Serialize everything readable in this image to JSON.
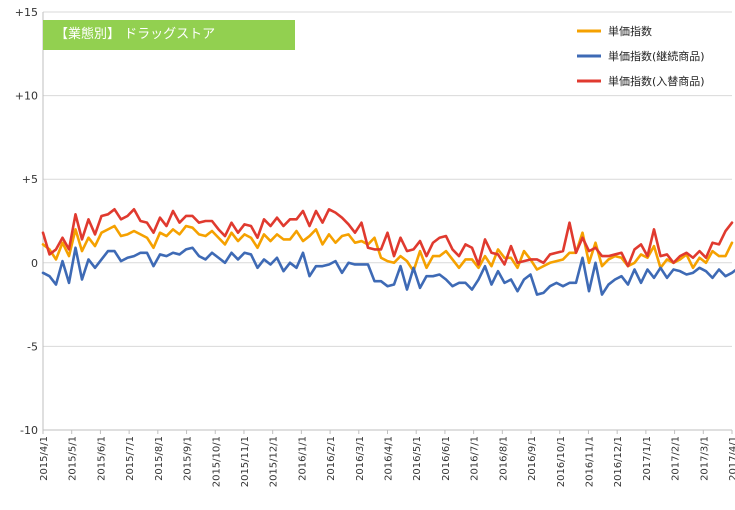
{
  "title": "【業態別】 ドラッグストア",
  "colors": {
    "series1": "#f5a100",
    "series2": "#3e6ab5",
    "series3": "#e03a2f",
    "grid": "#d9d9d9",
    "title_bg": "#92d050"
  },
  "chart_data": {
    "type": "line",
    "title": "【業態別】 ドラッグストア",
    "ylim": [
      -10,
      15
    ],
    "yticks": [
      -10,
      -5,
      0,
      5,
      10,
      15
    ],
    "ytick_labels": [
      "-10",
      "-5",
      "0",
      "+5",
      "+10",
      "+15"
    ],
    "grid": true,
    "legend_position": "top-right",
    "x_tick_labels": [
      "2015/4/1",
      "2015/5/1",
      "2015/6/1",
      "2015/7/1",
      "2015/8/1",
      "2015/9/1",
      "2015/10/1",
      "2015/11/1",
      "2015/12/1",
      "2016/1/1",
      "2016/2/1",
      "2016/3/1",
      "2016/4/1",
      "2016/5/1",
      "2016/6/1",
      "2016/7/1",
      "2016/8/1",
      "2016/9/1",
      "2016/10/1",
      "2016/11/1",
      "2016/12/1",
      "2017/1/1",
      "2017/2/1",
      "2017/3/1",
      "2017/4/1"
    ],
    "series": [
      {
        "name": "単価指数",
        "values": [
          1.1,
          0.8,
          0.2,
          1.2,
          0.4,
          2.0,
          0.7,
          1.5,
          1.0,
          1.8,
          2.0,
          2.2,
          1.6,
          1.7,
          1.9,
          1.7,
          1.5,
          0.9,
          1.8,
          1.6,
          2.0,
          1.7,
          2.2,
          2.1,
          1.7,
          1.6,
          1.9,
          1.5,
          1.1,
          1.8,
          1.3,
          1.7,
          1.5,
          0.9,
          1.7,
          1.3,
          1.7,
          1.4,
          1.4,
          1.9,
          1.3,
          1.6,
          2.0,
          1.1,
          1.7,
          1.2,
          1.6,
          1.7,
          1.2,
          1.3,
          1.1,
          1.5,
          0.3,
          0.1,
          0.0,
          0.4,
          0.1,
          -0.5,
          0.7,
          -0.3,
          0.4,
          0.4,
          0.7,
          0.2,
          -0.3,
          0.2,
          0.2,
          -0.3,
          0.4,
          -0.2,
          0.8,
          0.3,
          0.3,
          -0.3,
          0.7,
          0.2,
          -0.4,
          -0.2,
          0.0,
          0.1,
          0.2,
          0.6,
          0.6,
          1.8,
          0.0,
          1.2,
          -0.2,
          0.2,
          0.4,
          0.3,
          -0.2,
          0.0,
          0.5,
          0.3,
          1.0,
          -0.3,
          0.2,
          0.0,
          0.2,
          0.5,
          -0.3,
          0.3,
          0.0,
          0.7,
          0.4,
          0.4,
          1.2
        ],
        "color": "#f5a100"
      },
      {
        "name": "単価指数(継続商品)",
        "values": [
          -0.6,
          -0.8,
          -1.3,
          0.1,
          -1.2,
          0.9,
          -1.0,
          0.2,
          -0.3,
          0.2,
          0.7,
          0.7,
          0.1,
          0.3,
          0.4,
          0.6,
          0.6,
          -0.2,
          0.5,
          0.4,
          0.6,
          0.5,
          0.8,
          0.9,
          0.4,
          0.2,
          0.6,
          0.3,
          0.0,
          0.6,
          0.2,
          0.6,
          0.5,
          -0.3,
          0.2,
          -0.1,
          0.3,
          -0.5,
          0.0,
          -0.3,
          0.6,
          -0.8,
          -0.2,
          -0.2,
          -0.1,
          0.1,
          -0.6,
          0.0,
          -0.1,
          -0.1,
          -0.1,
          -1.1,
          -1.1,
          -1.4,
          -1.3,
          -0.2,
          -1.6,
          -0.3,
          -1.5,
          -0.8,
          -0.8,
          -0.7,
          -1.0,
          -1.4,
          -1.2,
          -1.2,
          -1.6,
          -1.0,
          -0.2,
          -1.3,
          -0.5,
          -1.2,
          -1.0,
          -1.7,
          -1.0,
          -0.7,
          -1.9,
          -1.8,
          -1.4,
          -1.2,
          -1.4,
          -1.2,
          -1.2,
          0.3,
          -1.7,
          0.0,
          -1.9,
          -1.3,
          -1.0,
          -0.8,
          -1.3,
          -0.4,
          -1.2,
          -0.4,
          -0.9,
          -0.3,
          -0.9,
          -0.4,
          -0.5,
          -0.7,
          -0.6,
          -0.3,
          -0.5,
          -0.9,
          -0.4,
          -0.8,
          -0.6,
          -0.3
        ],
        "color": "#3e6ab5"
      },
      {
        "name": "単価指数(入替商品)",
        "values": [
          1.8,
          0.5,
          0.8,
          1.5,
          0.8,
          2.9,
          1.4,
          2.6,
          1.7,
          2.8,
          2.9,
          3.2,
          2.6,
          2.8,
          3.2,
          2.5,
          2.4,
          1.8,
          2.7,
          2.2,
          3.1,
          2.4,
          2.8,
          2.8,
          2.4,
          2.5,
          2.5,
          2.0,
          1.6,
          2.4,
          1.8,
          2.3,
          2.2,
          1.5,
          2.6,
          2.2,
          2.7,
          2.2,
          2.6,
          2.6,
          3.1,
          2.2,
          3.1,
          2.4,
          3.2,
          3.0,
          2.7,
          2.3,
          1.8,
          2.4,
          0.9,
          0.8,
          0.8,
          1.8,
          0.4,
          1.5,
          0.7,
          0.8,
          1.3,
          0.4,
          1.2,
          1.5,
          1.6,
          0.8,
          0.4,
          1.1,
          0.9,
          -0.1,
          1.4,
          0.6,
          0.5,
          -0.1,
          1.0,
          0.0,
          0.1,
          0.2,
          0.2,
          0.0,
          0.5,
          0.6,
          0.7,
          2.4,
          0.6,
          1.5,
          0.7,
          0.9,
          0.4,
          0.4,
          0.5,
          0.6,
          -0.2,
          0.8,
          1.1,
          0.4,
          2.0,
          0.4,
          0.5,
          0.0,
          0.4,
          0.6,
          0.3,
          0.7,
          0.3,
          1.2,
          1.1,
          1.9,
          2.4
        ],
        "color": "#e03a2f"
      }
    ]
  }
}
